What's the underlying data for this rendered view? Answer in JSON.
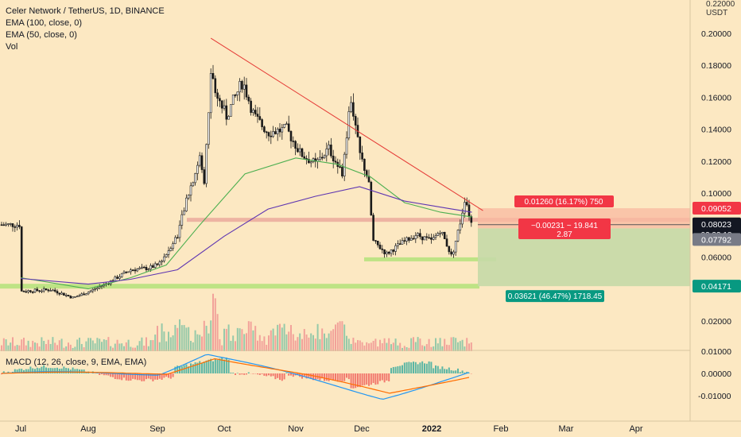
{
  "header": {
    "title": "Celer Network / TetherUS, 1D, BINANCE",
    "ema100": "EMA (100, close, 0)",
    "ema50": "EMA (50, close, 0)",
    "vol": "Vol"
  },
  "macd_label": "MACD (12, 26, close, 9, EMA, EMA)",
  "colors": {
    "background": "#FCE8C2",
    "up": "#26A69A",
    "down": "#EF5350",
    "ema50": "#4CAF50",
    "ema100": "#5E35B1",
    "trendline": "#E53935",
    "zone": "#E8A59A",
    "support": "#B7E27E",
    "target_box": "#C5D9A7",
    "stop_box": "#F9B9A0",
    "macd_line": "#2196F3",
    "signal_line": "#FF6D00",
    "last_price_bg": "#131722",
    "stop_tag": "#F23645",
    "target_tag": "#089981"
  },
  "chart_data": {
    "type": "candlestick",
    "title": "Celer Network / TetherUS, 1D, BINANCE",
    "ylabel": "USDT",
    "ylim": [
      0.0,
      0.22
    ],
    "x_ticks": [
      "Jul",
      "Aug",
      "Sep",
      "Oct",
      "Nov",
      "Dec",
      "2022",
      "Feb",
      "Mar",
      "Apr"
    ],
    "y_ticks": [
      "0.22000",
      "0.20000",
      "0.18000",
      "0.16000",
      "0.14000",
      "0.12000",
      "0.10000",
      "0.06000",
      "0.02000"
    ],
    "price_series": [
      {
        "d": "Jul",
        "v": 0.0385
      },
      {
        "d": "Jul 15",
        "v": 0.0395
      },
      {
        "d": "Jul 25",
        "v": 0.0345
      },
      {
        "d": "Aug 1",
        "v": 0.038
      },
      {
        "d": "Aug 10",
        "v": 0.044
      },
      {
        "d": "Aug 20",
        "v": 0.052
      },
      {
        "d": "Aug 28",
        "v": 0.053
      },
      {
        "d": "Sep 1",
        "v": 0.055
      },
      {
        "d": "Sep 5",
        "v": 0.062
      },
      {
        "d": "Sep 10",
        "v": 0.074
      },
      {
        "d": "Sep 15",
        "v": 0.1
      },
      {
        "d": "Sep 20",
        "v": 0.122
      },
      {
        "d": "Sep 22",
        "v": 0.106
      },
      {
        "d": "Sep 25",
        "v": 0.175
      },
      {
        "d": "Sep 28",
        "v": 0.16
      },
      {
        "d": "Oct 2",
        "v": 0.148
      },
      {
        "d": "Oct 5",
        "v": 0.158
      },
      {
        "d": "Oct 9",
        "v": 0.17
      },
      {
        "d": "Oct 14",
        "v": 0.148
      },
      {
        "d": "Oct 20",
        "v": 0.138
      },
      {
        "d": "Oct 28",
        "v": 0.14
      },
      {
        "d": "Nov 3",
        "v": 0.125
      },
      {
        "d": "Nov 10",
        "v": 0.118
      },
      {
        "d": "Nov 16",
        "v": 0.128
      },
      {
        "d": "Nov 22",
        "v": 0.112
      },
      {
        "d": "Nov 26",
        "v": 0.16
      },
      {
        "d": "Nov 30",
        "v": 0.125
      },
      {
        "d": "Dec 4",
        "v": 0.108
      },
      {
        "d": "Dec 6",
        "v": 0.07
      },
      {
        "d": "Dec 12",
        "v": 0.062
      },
      {
        "d": "Dec 18",
        "v": 0.068
      },
      {
        "d": "Dec 25",
        "v": 0.074
      },
      {
        "d": "Jan 1",
        "v": 0.07
      },
      {
        "d": "Jan 5",
        "v": 0.077
      },
      {
        "d": "Jan 10",
        "v": 0.06
      },
      {
        "d": "Jan 14",
        "v": 0.083
      },
      {
        "d": "Jan 16",
        "v": 0.098
      },
      {
        "d": "Jan 18",
        "v": 0.085
      },
      {
        "d": "Jan 19",
        "v": 0.0802
      }
    ],
    "ema50_series": [
      {
        "d": "Jul",
        "v": 0.047
      },
      {
        "d": "Aug 1",
        "v": 0.04
      },
      {
        "d": "Aug 20",
        "v": 0.047
      },
      {
        "d": "Sep 5",
        "v": 0.055
      },
      {
        "d": "Sep 20",
        "v": 0.08
      },
      {
        "d": "Oct 10",
        "v": 0.112
      },
      {
        "d": "Nov 1",
        "v": 0.122
      },
      {
        "d": "Nov 20",
        "v": 0.118
      },
      {
        "d": "Dec 5",
        "v": 0.11
      },
      {
        "d": "Dec 20",
        "v": 0.094
      },
      {
        "d": "Jan 5",
        "v": 0.088
      },
      {
        "d": "Jan 19",
        "v": 0.085
      }
    ],
    "ema100_series": [
      {
        "d": "Jul",
        "v": 0.0465
      },
      {
        "d": "Aug 1",
        "v": 0.043
      },
      {
        "d": "Aug 20",
        "v": 0.046
      },
      {
        "d": "Sep 10",
        "v": 0.052
      },
      {
        "d": "Oct 1",
        "v": 0.073
      },
      {
        "d": "Oct 20",
        "v": 0.09
      },
      {
        "d": "Nov 10",
        "v": 0.098
      },
      {
        "d": "Nov 30",
        "v": 0.104
      },
      {
        "d": "Dec 20",
        "v": 0.095
      },
      {
        "d": "Jan 10",
        "v": 0.09
      },
      {
        "d": "Jan 19",
        "v": 0.088
      }
    ],
    "trendline": [
      {
        "d": "Sep 25",
        "v": 0.197
      },
      {
        "d": "Jan 19",
        "v": 0.092
      }
    ],
    "resistance_zone": {
      "from": 0.082,
      "to": 0.0845
    },
    "support_line": 0.0417,
    "local_support": 0.0585,
    "position": {
      "stop": 0.09052,
      "entry": 0.07792,
      "target": 0.04171
    },
    "macd_ticks": [
      "0.01000",
      "0.00000",
      "-0.01000"
    ],
    "macd_range": [
      -0.014,
      0.012
    ]
  },
  "price_tags": {
    "stop": "0.09052",
    "last_price": "0.08023",
    "countdown": "02:33:18",
    "entry": "0.07792",
    "target": "0.04171"
  },
  "position_labels": {
    "stop_info": "0.01260 (16.17%) 750",
    "pnl_line1": "−0.00231 ~ 19.841",
    "pnl_line2": "2.87",
    "target_info": "0.03621 (46.47%) 1718.45"
  },
  "axis_unit": {
    "top": "0.22000",
    "unit": "USDT"
  }
}
